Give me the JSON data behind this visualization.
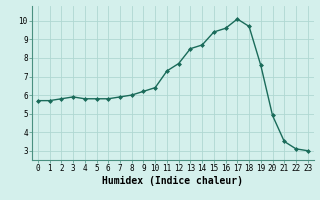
{
  "x": [
    0,
    1,
    2,
    3,
    4,
    5,
    6,
    7,
    8,
    9,
    10,
    11,
    12,
    13,
    14,
    15,
    16,
    17,
    18,
    19,
    20,
    21,
    22,
    23
  ],
  "y": [
    5.7,
    5.7,
    5.8,
    5.9,
    5.8,
    5.8,
    5.8,
    5.9,
    6.0,
    6.2,
    6.4,
    7.3,
    7.7,
    8.5,
    8.7,
    9.4,
    9.6,
    10.1,
    9.7,
    7.6,
    4.9,
    3.5,
    3.1,
    3.0
  ],
  "xlabel": "Humidex (Indice chaleur)",
  "line_color": "#1a6b5a",
  "marker": "D",
  "marker_size": 2.0,
  "bg_color": "#d4f0ec",
  "grid_color": "#afd8d2",
  "ylim": [
    2.5,
    10.8
  ],
  "xlim": [
    -0.5,
    23.5
  ],
  "yticks": [
    3,
    4,
    5,
    6,
    7,
    8,
    9,
    10
  ],
  "xticks": [
    0,
    1,
    2,
    3,
    4,
    5,
    6,
    7,
    8,
    9,
    10,
    11,
    12,
    13,
    14,
    15,
    16,
    17,
    18,
    19,
    20,
    21,
    22,
    23
  ],
  "tick_fontsize": 5.5,
  "xlabel_fontsize": 7.0,
  "linewidth": 1.0
}
